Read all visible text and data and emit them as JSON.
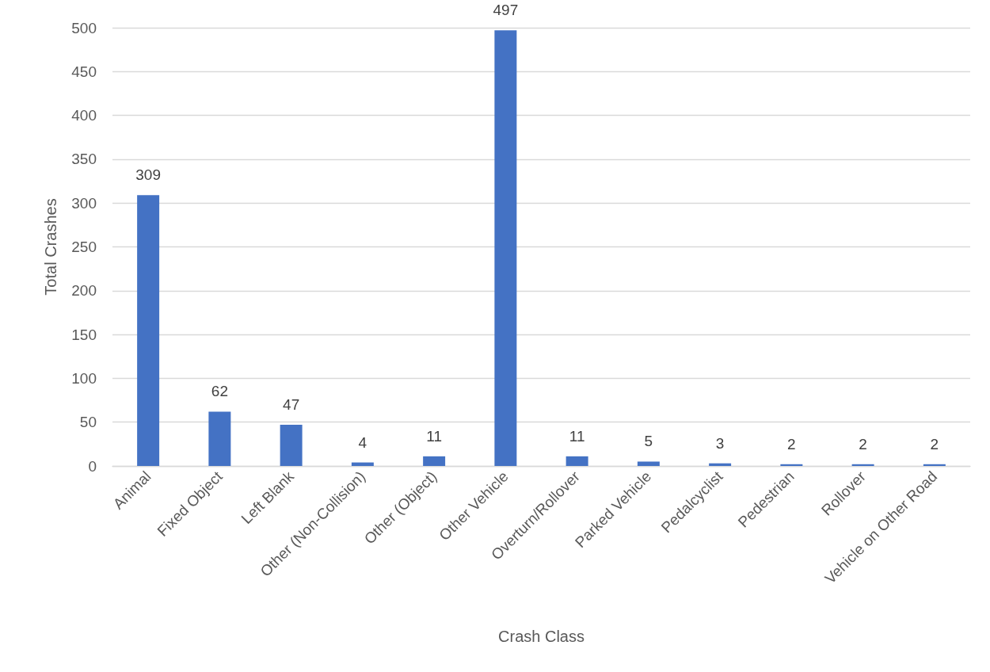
{
  "chart_data": {
    "type": "bar",
    "xlabel": "Crash Class",
    "ylabel": "Total Crashes",
    "categories": [
      "Animal",
      "Fixed Object",
      "Left Blank",
      "Other (Non-Collision)",
      "Other (Object)",
      "Other Vehicle",
      "Overturn/Rollover",
      "Parked Vehicle",
      "Pedalcyclist",
      "Pedestrian",
      "Rollover",
      "Vehicle on Other Road"
    ],
    "values": [
      309,
      62,
      47,
      4,
      11,
      497,
      11,
      5,
      3,
      2,
      2,
      2
    ],
    "color": "#4472c4",
    "ylim": [
      0,
      500
    ],
    "yticks": [
      0,
      50,
      100,
      150,
      200,
      250,
      300,
      350,
      400,
      450,
      500
    ],
    "grid": "y",
    "data_labels": true
  }
}
